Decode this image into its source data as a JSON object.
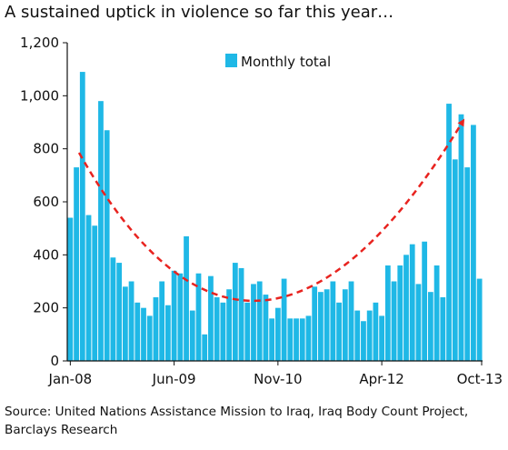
{
  "chart_data": {
    "type": "bar",
    "title": "A sustained uptick in violence so far this year…",
    "source_lines": [
      "Source: United Nations Assistance Mission to Iraq, Iraq Body Count Project,",
      "Barclays Research"
    ],
    "xlabel": "",
    "ylabel": "",
    "ylim": [
      0,
      1200
    ],
    "yticks": [
      0,
      200,
      400,
      600,
      800,
      1000,
      1200
    ],
    "ytick_labels": [
      "0",
      "200",
      "400",
      "600",
      "800",
      "1,000",
      "1,200"
    ],
    "xtick_labels": [
      "Jan-08",
      "Jun-09",
      "Nov-10",
      "Apr-12",
      "Oct-13"
    ],
    "xtick_index": [
      0,
      17,
      34,
      51,
      69
    ],
    "grid": false,
    "legend_position": "top-right",
    "annotation": "dashed red arrow tracing U-shaped trend",
    "series": [
      {
        "name": "Monthly total",
        "color": "#1fb8e6",
        "values": [
          540,
          730,
          1090,
          550,
          510,
          980,
          870,
          390,
          370,
          280,
          300,
          220,
          200,
          170,
          240,
          300,
          210,
          340,
          330,
          470,
          190,
          330,
          100,
          320,
          240,
          220,
          270,
          370,
          350,
          220,
          290,
          300,
          250,
          160,
          200,
          310,
          160,
          160,
          160,
          170,
          280,
          260,
          270,
          300,
          220,
          270,
          300,
          190,
          150,
          190,
          220,
          170,
          360,
          300,
          360,
          400,
          440,
          290,
          450,
          260,
          360,
          240,
          970,
          760,
          930,
          730,
          890,
          310
        ]
      }
    ]
  }
}
